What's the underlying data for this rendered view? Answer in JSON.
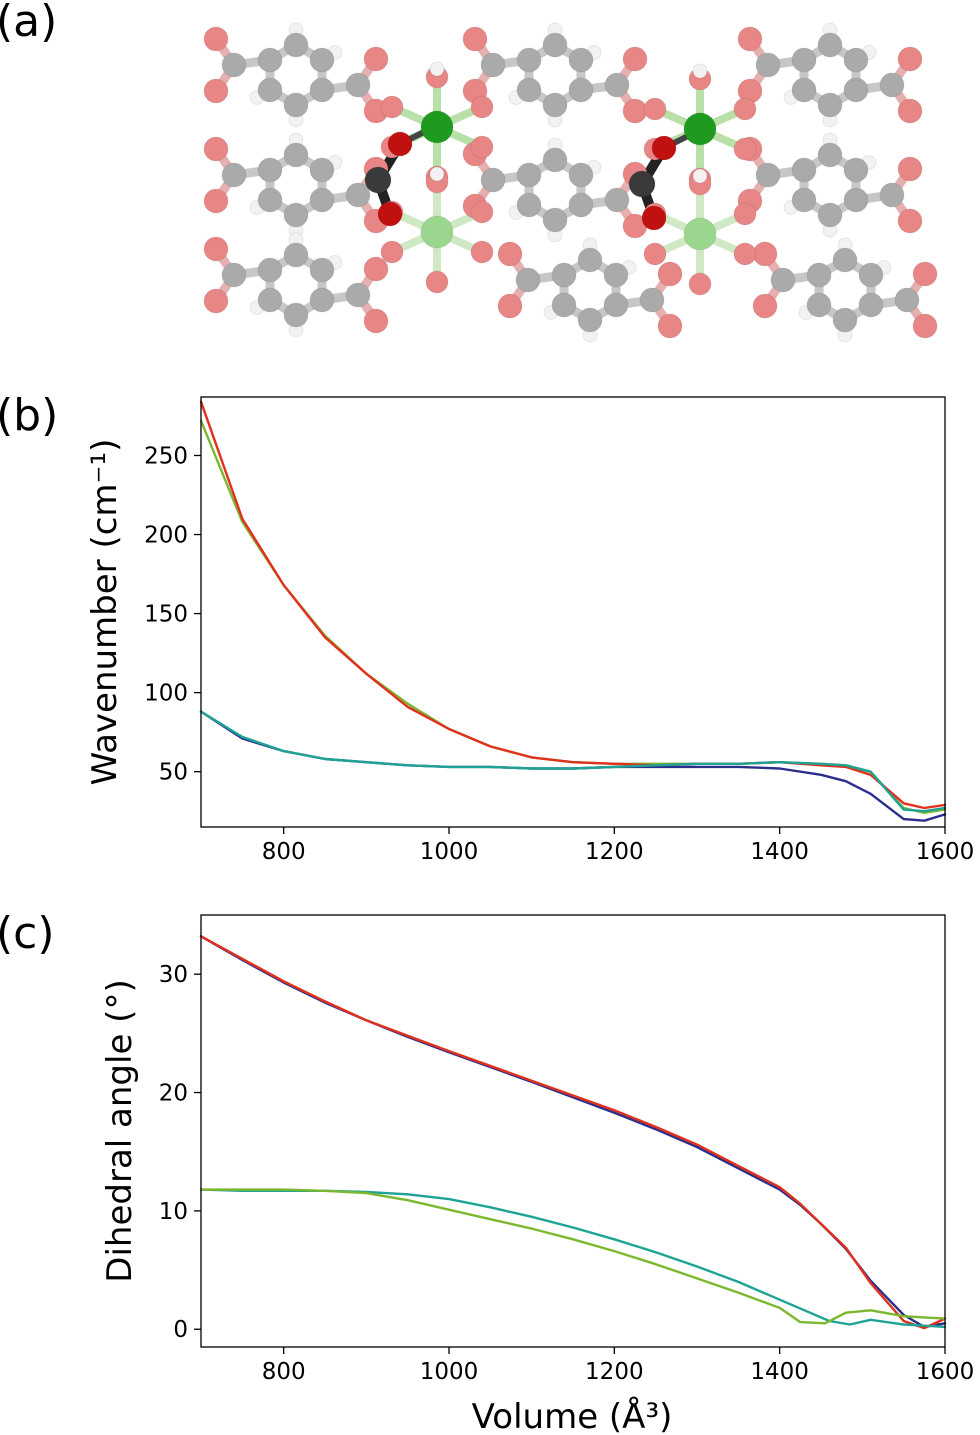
{
  "panels": {
    "a": {
      "label": "(a)"
    },
    "b": {
      "label": "(b)"
    },
    "c": {
      "label": "(c)"
    }
  },
  "colors": {
    "blue": "#2b2f8c",
    "teal": "#1fa395",
    "green": "#7cb82f",
    "red": "#e2301f",
    "oxygen": "#e88585",
    "carbon": "#aaaaaa",
    "hydrogen": "#f2f2f2",
    "zinc": "#1e9a1e",
    "zinc_light": "#9bd68f",
    "formate_c": "#3a3a3a",
    "formate_o": "#c01010"
  },
  "chart_data": [
    {
      "type": "line",
      "panel": "(b)",
      "xlabel": "",
      "ylabel": "Wavenumber (cm⁻¹)",
      "xlim": [
        700,
        1600
      ],
      "ylim": [
        15,
        287
      ],
      "xticks": [
        800,
        1000,
        1200,
        1400,
        1600
      ],
      "yticks": [
        50,
        100,
        150,
        200,
        250
      ],
      "series": [
        {
          "color_key": "green",
          "x": [
            700,
            750,
            800,
            850,
            900,
            950,
            1000,
            1050,
            1100,
            1150,
            1200,
            1250,
            1300,
            1350,
            1400,
            1450,
            1480,
            1510,
            1550,
            1575,
            1600
          ],
          "y": [
            272,
            208,
            168,
            136,
            112,
            93,
            77,
            66,
            59,
            56,
            55,
            55,
            55,
            55,
            56,
            55,
            54,
            50,
            27,
            24,
            26
          ]
        },
        {
          "color_key": "red",
          "x": [
            700,
            750,
            800,
            850,
            900,
            950,
            1000,
            1050,
            1100,
            1150,
            1200,
            1250,
            1300,
            1350,
            1400,
            1450,
            1480,
            1510,
            1550,
            1575,
            1600
          ],
          "y": [
            284,
            210,
            168,
            135,
            112,
            91,
            77,
            66,
            59,
            56,
            55,
            54,
            55,
            55,
            56,
            54,
            53,
            48,
            30,
            27,
            29
          ]
        },
        {
          "color_key": "blue",
          "x": [
            700,
            750,
            800,
            850,
            900,
            950,
            1000,
            1050,
            1100,
            1150,
            1200,
            1250,
            1300,
            1350,
            1400,
            1450,
            1480,
            1510,
            1550,
            1575,
            1600
          ],
          "y": [
            88,
            71,
            63,
            58,
            56,
            54,
            53,
            53,
            52,
            52,
            53,
            53,
            53,
            53,
            52,
            48,
            44,
            36,
            20,
            19,
            23
          ]
        },
        {
          "color_key": "teal",
          "x": [
            700,
            750,
            800,
            850,
            900,
            950,
            1000,
            1050,
            1100,
            1150,
            1200,
            1250,
            1300,
            1350,
            1400,
            1450,
            1480,
            1510,
            1550,
            1575,
            1600
          ],
          "y": [
            88,
            72,
            63,
            58,
            56,
            54,
            53,
            53,
            52,
            52,
            53,
            54,
            55,
            55,
            56,
            55,
            54,
            50,
            26,
            25,
            27
          ]
        }
      ]
    },
    {
      "type": "line",
      "panel": "(c)",
      "xlabel": "Volume (Å³)",
      "ylabel": "Dihedral angle (°)",
      "xlim": [
        700,
        1600
      ],
      "ylim": [
        -1.5,
        35
      ],
      "xticks": [
        800,
        1000,
        1200,
        1400,
        1600
      ],
      "yticks": [
        0,
        10,
        20,
        30
      ],
      "series": [
        {
          "color_key": "blue",
          "x": [
            700,
            750,
            800,
            850,
            900,
            950,
            1000,
            1100,
            1200,
            1250,
            1300,
            1350,
            1400,
            1425,
            1450,
            1480,
            1510,
            1550,
            1575,
            1600
          ],
          "y": [
            33.2,
            31.2,
            29.3,
            27.6,
            26.1,
            24.7,
            23.4,
            20.9,
            18.3,
            16.9,
            15.4,
            13.6,
            11.8,
            10.5,
            8.9,
            6.8,
            4.1,
            1.2,
            0.2,
            0.5
          ]
        },
        {
          "color_key": "red",
          "x": [
            700,
            750,
            800,
            850,
            900,
            950,
            1000,
            1100,
            1200,
            1250,
            1300,
            1350,
            1400,
            1425,
            1450,
            1480,
            1510,
            1550,
            1575,
            1600
          ],
          "y": [
            33.2,
            31.3,
            29.4,
            27.7,
            26.1,
            24.8,
            23.5,
            21.0,
            18.5,
            17.1,
            15.6,
            13.8,
            12.0,
            10.6,
            8.9,
            6.9,
            3.9,
            0.7,
            0.1,
            0.9
          ]
        },
        {
          "color_key": "teal",
          "x": [
            700,
            750,
            800,
            850,
            900,
            950,
            1000,
            1050,
            1100,
            1150,
            1200,
            1250,
            1300,
            1350,
            1400,
            1430,
            1460,
            1485,
            1510,
            1550,
            1575,
            1600
          ],
          "y": [
            11.8,
            11.7,
            11.7,
            11.7,
            11.6,
            11.4,
            11.0,
            10.3,
            9.5,
            8.6,
            7.6,
            6.5,
            5.3,
            4.0,
            2.5,
            1.6,
            0.7,
            0.4,
            0.8,
            0.4,
            0.3,
            0.2
          ]
        },
        {
          "color_key": "green",
          "x": [
            700,
            750,
            800,
            850,
            900,
            950,
            1000,
            1050,
            1100,
            1150,
            1200,
            1250,
            1300,
            1350,
            1400,
            1425,
            1455,
            1480,
            1510,
            1550,
            1575,
            1600
          ],
          "y": [
            11.8,
            11.8,
            11.8,
            11.7,
            11.5,
            10.9,
            10.1,
            9.3,
            8.5,
            7.6,
            6.6,
            5.5,
            4.3,
            3.1,
            1.8,
            0.6,
            0.5,
            1.4,
            1.6,
            1.1,
            1.0,
            0.9
          ]
        }
      ]
    }
  ]
}
